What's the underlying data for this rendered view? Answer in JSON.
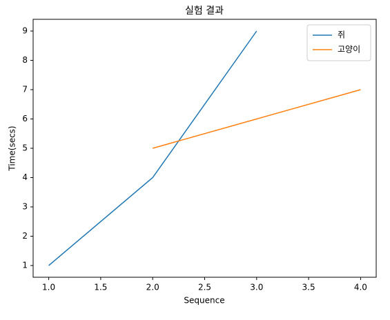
{
  "chart_data": {
    "type": "line",
    "title": "실험 결과",
    "xlabel": "Sequence",
    "ylabel": "Time(secs)",
    "series": [
      {
        "name": "쥐",
        "color": "#1f77b4",
        "x": [
          1,
          2,
          3
        ],
        "values": [
          1,
          4,
          9
        ]
      },
      {
        "name": "고양이",
        "color": "#ff7f0e",
        "x": [
          2,
          3,
          4
        ],
        "values": [
          5,
          6,
          7
        ]
      }
    ],
    "xlim": [
      0.85,
      4.15
    ],
    "ylim": [
      0.6,
      9.4
    ],
    "xticks": [
      {
        "value": 1,
        "label": "1.0"
      },
      {
        "value": 1.5,
        "label": "1.5"
      },
      {
        "value": 2,
        "label": "2.0"
      },
      {
        "value": 2.5,
        "label": "2.5"
      },
      {
        "value": 3,
        "label": "3.0"
      },
      {
        "value": 3.5,
        "label": "3.5"
      },
      {
        "value": 4,
        "label": "4.0"
      }
    ],
    "yticks": [
      1,
      2,
      3,
      4,
      5,
      6,
      7,
      8,
      9
    ],
    "grid": false,
    "legend": "upper right"
  }
}
